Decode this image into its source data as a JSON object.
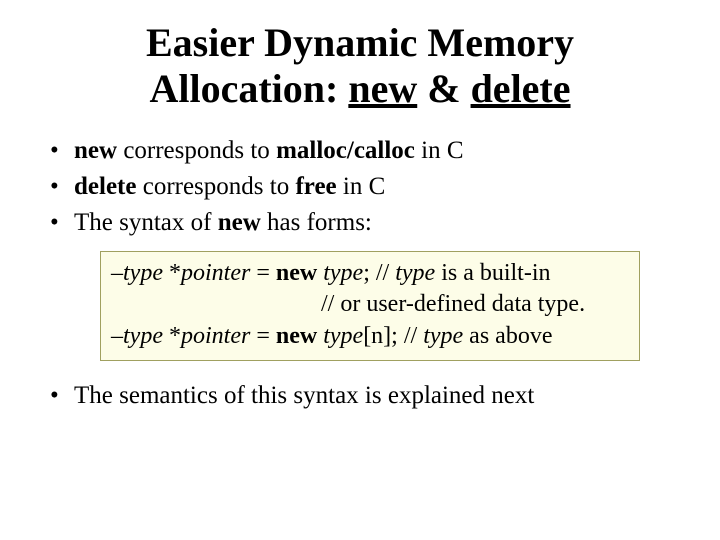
{
  "title": {
    "line1_a": "Easier Dynamic Memory",
    "line2_a": "Allocation: ",
    "line2_new": "new",
    "line2_amp": " & ",
    "line2_delete": "delete"
  },
  "bullets": {
    "b1": {
      "new": "new",
      "t1": " corresponds to ",
      "mc": "malloc/calloc",
      "t2": " in C"
    },
    "b2": {
      "delete": "delete",
      "t1": " corresponds to ",
      "free": "free",
      "t2": " in C"
    },
    "b3": {
      "t1": "The syntax of ",
      "new": "new",
      "t2": " has forms:"
    },
    "b4": {
      "t1": "The semantics of this syntax is explained next"
    }
  },
  "codebox": {
    "l1": {
      "dash": "–",
      "type1": "type",
      "star": " *",
      "ptr": "pointer",
      "eq": " = ",
      "new": "new",
      "sp": " ",
      "type2": "type",
      "semi": "; // ",
      "type3": "type",
      "tail": " is a built-in"
    },
    "l2": {
      "text": "// or user-defined data type."
    },
    "l3": {
      "dash": "–",
      "type1": "type",
      "star": " *",
      "ptr": "pointer",
      "eq": " = ",
      "new": "new",
      "sp": " ",
      "type2": "type",
      "bracket": "[n]; // ",
      "type3": "type",
      "tail": " as above"
    }
  },
  "colors": {
    "text": "#000000",
    "background": "#ffffff",
    "box_bg": "#fdfde8",
    "box_border": "#a0a060"
  },
  "fonts": {
    "family": "Times New Roman",
    "title_size_pt": 30,
    "body_size_pt": 19,
    "code_size_pt": 18
  }
}
